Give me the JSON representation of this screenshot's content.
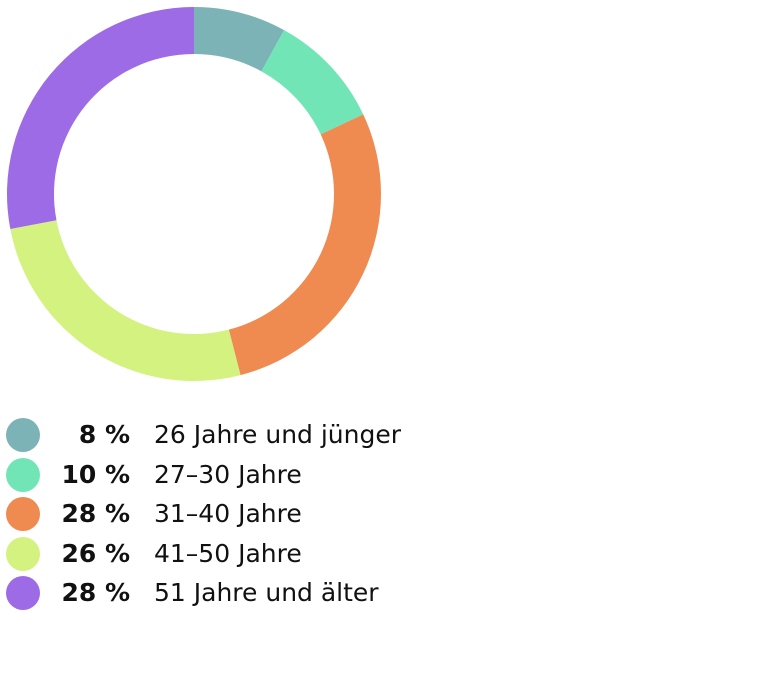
{
  "chart_data": {
    "type": "pie",
    "variant": "donut",
    "unit": "%",
    "categories": [
      "26 Jahre und jünger",
      "27–30 Jahre",
      "31–40 Jahre",
      "41–50 Jahre",
      "51 Jahre und älter"
    ],
    "values": [
      8,
      10,
      28,
      26,
      28
    ],
    "value_labels": [
      "8 %",
      "10 %",
      "28 %",
      "26 %",
      "28 %"
    ],
    "colors": [
      "#7bb3b7",
      "#72e5b7",
      "#ef8b50",
      "#d4f27f",
      "#9e6be6"
    ],
    "legend_position": "bottom-left",
    "title": ""
  }
}
